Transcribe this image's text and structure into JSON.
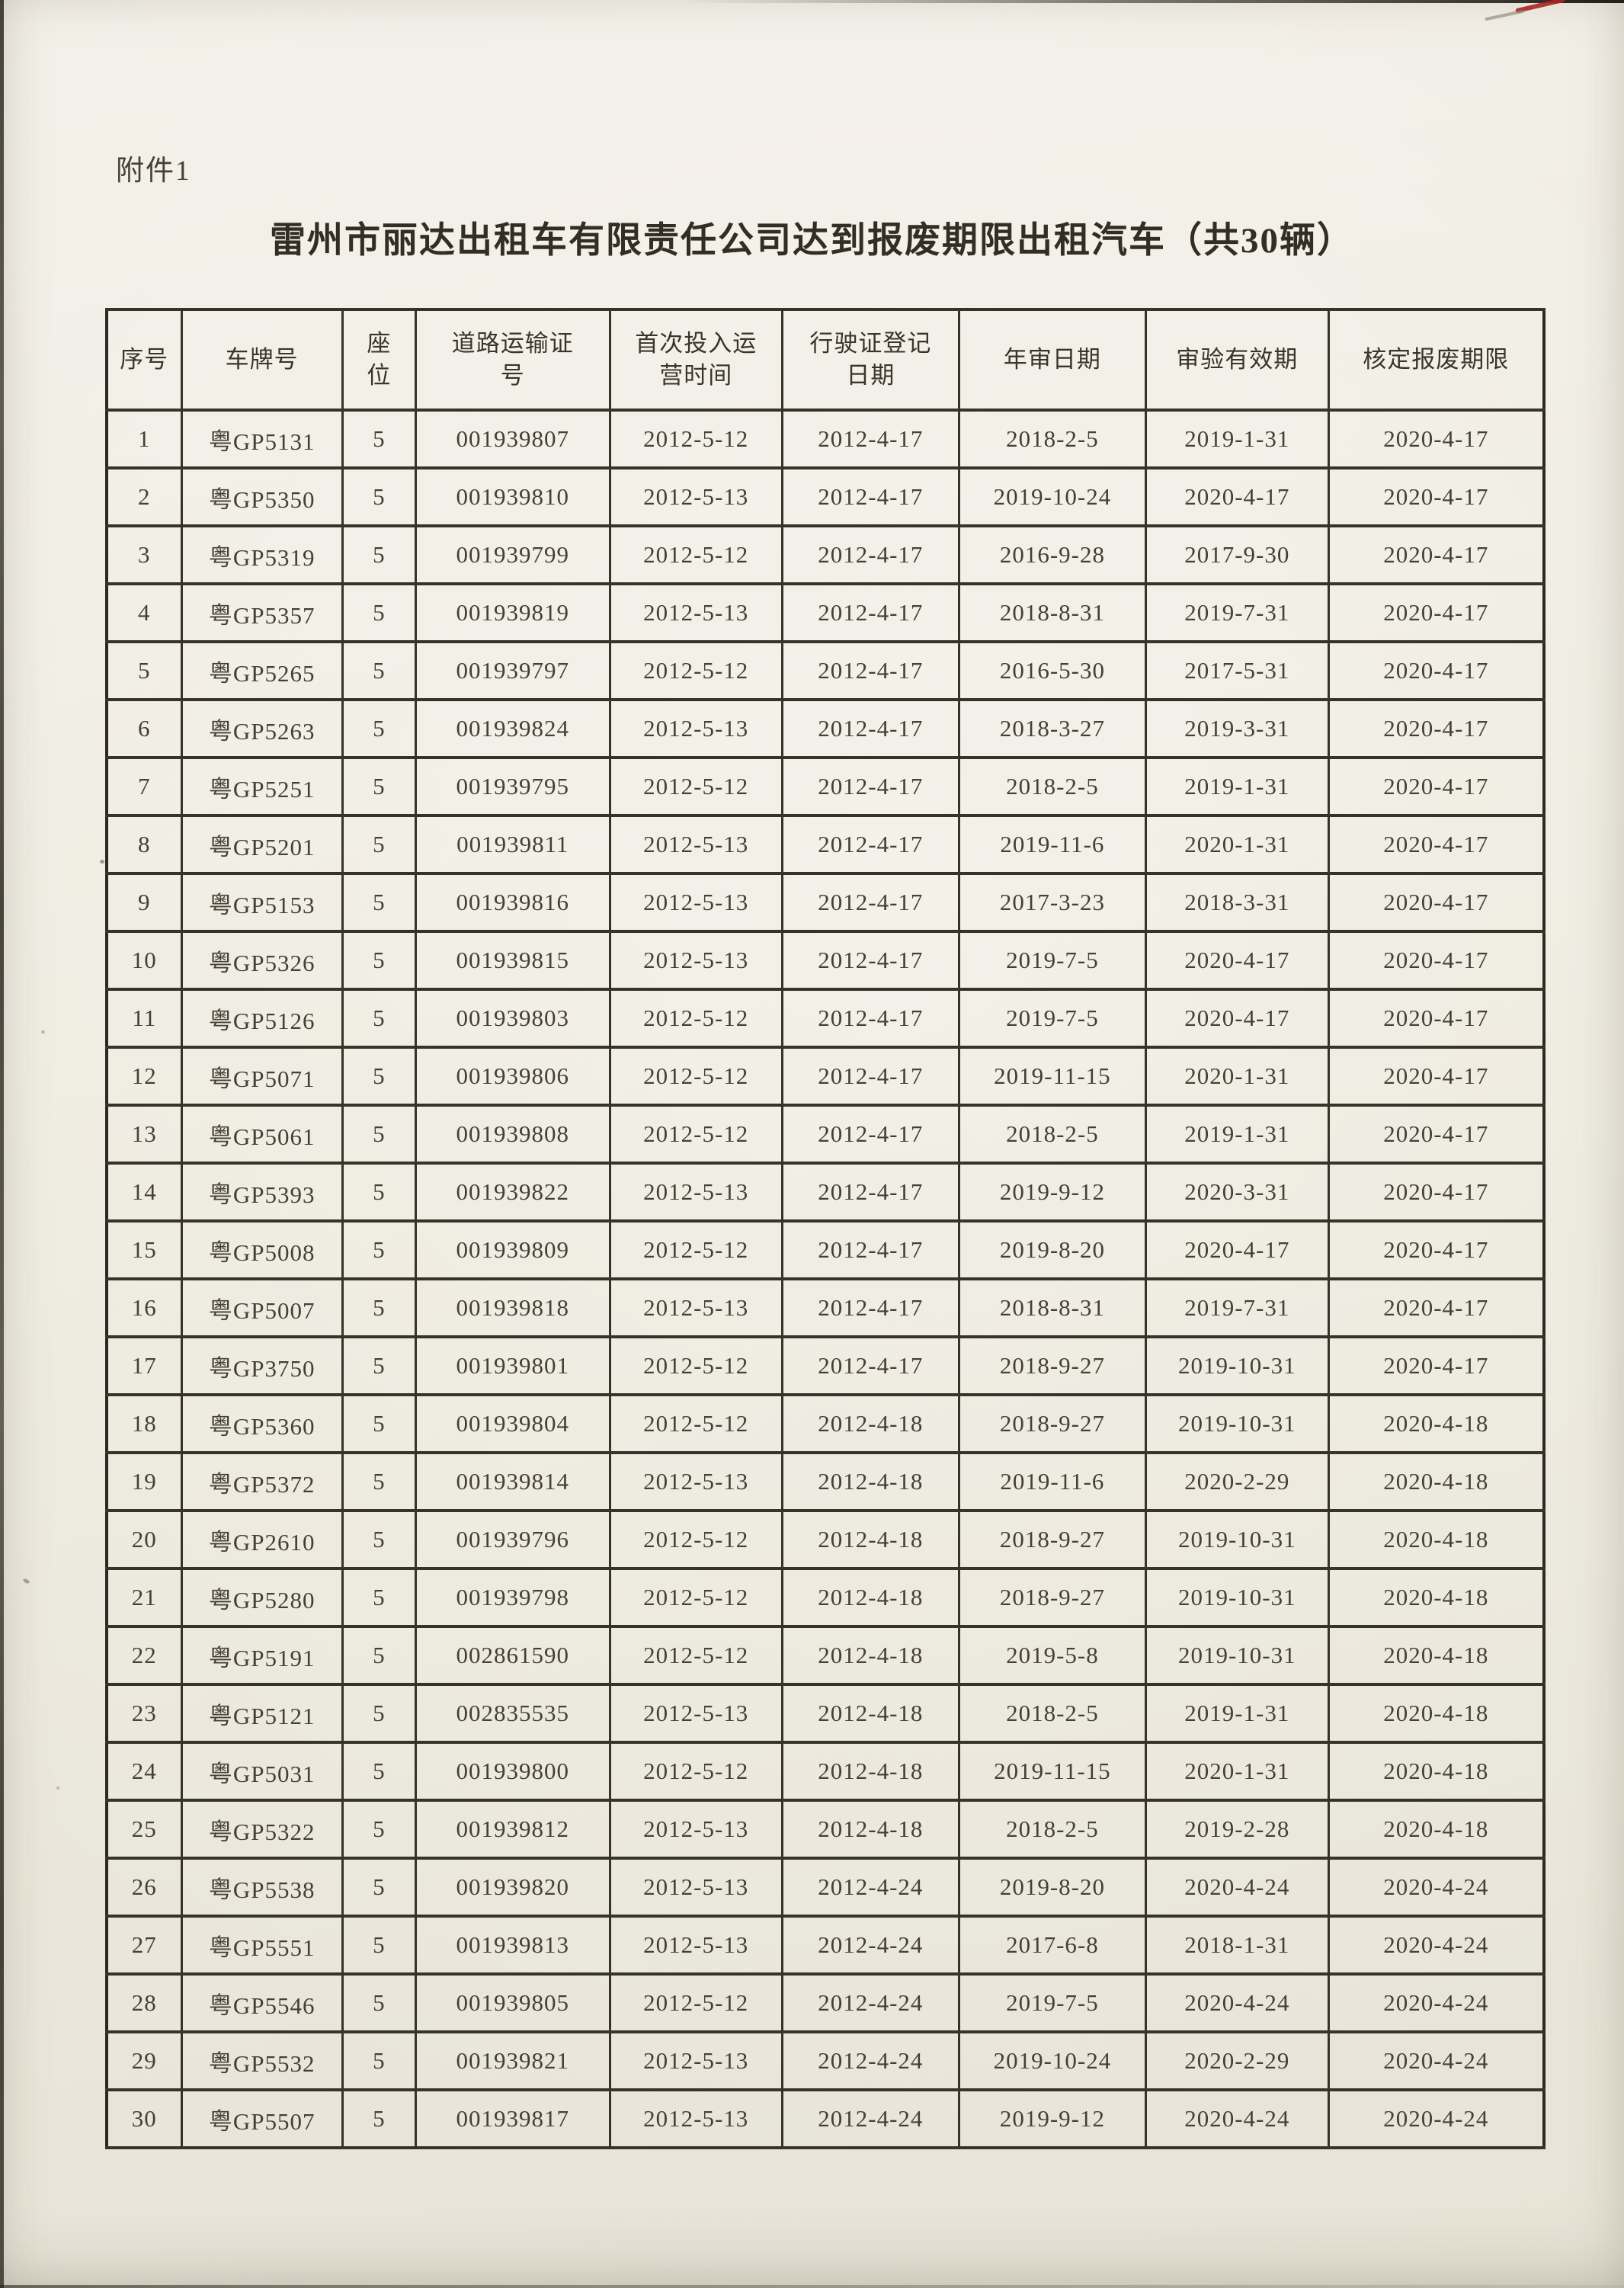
{
  "document": {
    "attachment_label": "附件1",
    "title": "雷州市丽达出租车有限责任公司达到报废期限出租汽车（共30辆）"
  },
  "table": {
    "columns": [
      "序号",
      "车牌号",
      "座位",
      "道路运输证号",
      "首次投入运营时间",
      "行驶证登记日期",
      "年审日期",
      "审验有效期",
      "核定报废期限"
    ],
    "rows": [
      [
        "1",
        "粤GP5131",
        "5",
        "001939807",
        "2012-5-12",
        "2012-4-17",
        "2018-2-5",
        "2019-1-31",
        "2020-4-17"
      ],
      [
        "2",
        "粤GP5350",
        "5",
        "001939810",
        "2012-5-13",
        "2012-4-17",
        "2019-10-24",
        "2020-4-17",
        "2020-4-17"
      ],
      [
        "3",
        "粤GP5319",
        "5",
        "001939799",
        "2012-5-12",
        "2012-4-17",
        "2016-9-28",
        "2017-9-30",
        "2020-4-17"
      ],
      [
        "4",
        "粤GP5357",
        "5",
        "001939819",
        "2012-5-13",
        "2012-4-17",
        "2018-8-31",
        "2019-7-31",
        "2020-4-17"
      ],
      [
        "5",
        "粤GP5265",
        "5",
        "001939797",
        "2012-5-12",
        "2012-4-17",
        "2016-5-30",
        "2017-5-31",
        "2020-4-17"
      ],
      [
        "6",
        "粤GP5263",
        "5",
        "001939824",
        "2012-5-13",
        "2012-4-17",
        "2018-3-27",
        "2019-3-31",
        "2020-4-17"
      ],
      [
        "7",
        "粤GP5251",
        "5",
        "001939795",
        "2012-5-12",
        "2012-4-17",
        "2018-2-5",
        "2019-1-31",
        "2020-4-17"
      ],
      [
        "8",
        "粤GP5201",
        "5",
        "001939811",
        "2012-5-13",
        "2012-4-17",
        "2019-11-6",
        "2020-1-31",
        "2020-4-17"
      ],
      [
        "9",
        "粤GP5153",
        "5",
        "001939816",
        "2012-5-13",
        "2012-4-17",
        "2017-3-23",
        "2018-3-31",
        "2020-4-17"
      ],
      [
        "10",
        "粤GP5326",
        "5",
        "001939815",
        "2012-5-13",
        "2012-4-17",
        "2019-7-5",
        "2020-4-17",
        "2020-4-17"
      ],
      [
        "11",
        "粤GP5126",
        "5",
        "001939803",
        "2012-5-12",
        "2012-4-17",
        "2019-7-5",
        "2020-4-17",
        "2020-4-17"
      ],
      [
        "12",
        "粤GP5071",
        "5",
        "001939806",
        "2012-5-12",
        "2012-4-17",
        "2019-11-15",
        "2020-1-31",
        "2020-4-17"
      ],
      [
        "13",
        "粤GP5061",
        "5",
        "001939808",
        "2012-5-12",
        "2012-4-17",
        "2018-2-5",
        "2019-1-31",
        "2020-4-17"
      ],
      [
        "14",
        "粤GP5393",
        "5",
        "001939822",
        "2012-5-13",
        "2012-4-17",
        "2019-9-12",
        "2020-3-31",
        "2020-4-17"
      ],
      [
        "15",
        "粤GP5008",
        "5",
        "001939809",
        "2012-5-12",
        "2012-4-17",
        "2019-8-20",
        "2020-4-17",
        "2020-4-17"
      ],
      [
        "16",
        "粤GP5007",
        "5",
        "001939818",
        "2012-5-13",
        "2012-4-17",
        "2018-8-31",
        "2019-7-31",
        "2020-4-17"
      ],
      [
        "17",
        "粤GP3750",
        "5",
        "001939801",
        "2012-5-12",
        "2012-4-17",
        "2018-9-27",
        "2019-10-31",
        "2020-4-17"
      ],
      [
        "18",
        "粤GP5360",
        "5",
        "001939804",
        "2012-5-12",
        "2012-4-18",
        "2018-9-27",
        "2019-10-31",
        "2020-4-18"
      ],
      [
        "19",
        "粤GP5372",
        "5",
        "001939814",
        "2012-5-13",
        "2012-4-18",
        "2019-11-6",
        "2020-2-29",
        "2020-4-18"
      ],
      [
        "20",
        "粤GP2610",
        "5",
        "001939796",
        "2012-5-12",
        "2012-4-18",
        "2018-9-27",
        "2019-10-31",
        "2020-4-18"
      ],
      [
        "21",
        "粤GP5280",
        "5",
        "001939798",
        "2012-5-12",
        "2012-4-18",
        "2018-9-27",
        "2019-10-31",
        "2020-4-18"
      ],
      [
        "22",
        "粤GP5191",
        "5",
        "002861590",
        "2012-5-12",
        "2012-4-18",
        "2019-5-8",
        "2019-10-31",
        "2020-4-18"
      ],
      [
        "23",
        "粤GP5121",
        "5",
        "002835535",
        "2012-5-13",
        "2012-4-18",
        "2018-2-5",
        "2019-1-31",
        "2020-4-18"
      ],
      [
        "24",
        "粤GP5031",
        "5",
        "001939800",
        "2012-5-12",
        "2012-4-18",
        "2019-11-15",
        "2020-1-31",
        "2020-4-18"
      ],
      [
        "25",
        "粤GP5322",
        "5",
        "001939812",
        "2012-5-13",
        "2012-4-18",
        "2018-2-5",
        "2019-2-28",
        "2020-4-18"
      ],
      [
        "26",
        "粤GP5538",
        "5",
        "001939820",
        "2012-5-13",
        "2012-4-24",
        "2019-8-20",
        "2020-4-24",
        "2020-4-24"
      ],
      [
        "27",
        "粤GP5551",
        "5",
        "001939813",
        "2012-5-13",
        "2012-4-24",
        "2017-6-8",
        "2018-1-31",
        "2020-4-24"
      ],
      [
        "28",
        "粤GP5546",
        "5",
        "001939805",
        "2012-5-12",
        "2012-4-24",
        "2019-7-5",
        "2020-4-24",
        "2020-4-24"
      ],
      [
        "29",
        "粤GP5532",
        "5",
        "001939821",
        "2012-5-13",
        "2012-4-24",
        "2019-10-24",
        "2020-2-29",
        "2020-4-24"
      ],
      [
        "30",
        "粤GP5507",
        "5",
        "001939817",
        "2012-5-13",
        "2012-4-24",
        "2019-9-12",
        "2020-4-24",
        "2020-4-24"
      ]
    ]
  },
  "artifacts": {
    "red_pen_mark_color": "#aa2420"
  }
}
